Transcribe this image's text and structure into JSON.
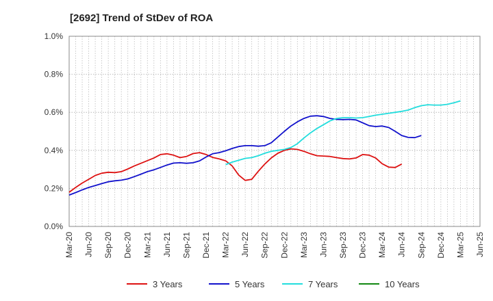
{
  "chart_data": {
    "type": "line",
    "title": "[2692]  Trend of StDev of ROA",
    "xlabel": "",
    "ylabel": "",
    "ylim": [
      0,
      1.0
    ],
    "y_ticks": [
      "0.0%",
      "0.2%",
      "0.4%",
      "0.6%",
      "0.8%",
      "1.0%"
    ],
    "x_ticks": [
      "Mar-20",
      "Jun-20",
      "Sep-20",
      "Dec-20",
      "Mar-21",
      "Jun-21",
      "Sep-21",
      "Dec-21",
      "Mar-22",
      "Jun-22",
      "Sep-22",
      "Dec-22",
      "Mar-23",
      "Jun-23",
      "Sep-23",
      "Dec-23",
      "Mar-24",
      "Jun-24",
      "Sep-24",
      "Dec-24",
      "Mar-25",
      "Jun-25"
    ],
    "grid": true,
    "legend_position": "bottom",
    "series": [
      {
        "name": "3 Years",
        "color": "#dd1111",
        "start_index": 0,
        "values": [
          0.18,
          0.205,
          0.228,
          0.248,
          0.268,
          0.28,
          0.285,
          0.283,
          0.288,
          0.302,
          0.318,
          0.332,
          0.346,
          0.36,
          0.378,
          0.382,
          0.375,
          0.362,
          0.368,
          0.383,
          0.388,
          0.378,
          0.363,
          0.355,
          0.345,
          0.318,
          0.27,
          0.242,
          0.248,
          0.29,
          0.328,
          0.36,
          0.385,
          0.4,
          0.408,
          0.405,
          0.395,
          0.382,
          0.372,
          0.37,
          0.368,
          0.362,
          0.357,
          0.355,
          0.36,
          0.378,
          0.375,
          0.36,
          0.33,
          0.312,
          0.31,
          0.328
        ]
      },
      {
        "name": "5 Years",
        "color": "#1111cc",
        "start_index": 0,
        "values": [
          0.165,
          0.178,
          0.192,
          0.205,
          0.215,
          0.225,
          0.235,
          0.24,
          0.243,
          0.25,
          0.262,
          0.275,
          0.288,
          0.298,
          0.31,
          0.323,
          0.333,
          0.335,
          0.332,
          0.335,
          0.345,
          0.365,
          0.382,
          0.388,
          0.398,
          0.41,
          0.42,
          0.425,
          0.425,
          0.422,
          0.425,
          0.44,
          0.47,
          0.5,
          0.528,
          0.55,
          0.568,
          0.58,
          0.582,
          0.578,
          0.568,
          0.563,
          0.562,
          0.563,
          0.56,
          0.545,
          0.53,
          0.525,
          0.528,
          0.52,
          0.5,
          0.478,
          0.468,
          0.467,
          0.478
        ]
      },
      {
        "name": "7 Years",
        "color": "#22dddd",
        "start_index": 24,
        "values": [
          0.325,
          0.338,
          0.348,
          0.358,
          0.362,
          0.372,
          0.385,
          0.395,
          0.4,
          0.405,
          0.415,
          0.435,
          0.465,
          0.492,
          0.515,
          0.535,
          0.555,
          0.568,
          0.572,
          0.572,
          0.57,
          0.572,
          0.578,
          0.585,
          0.59,
          0.595,
          0.6,
          0.605,
          0.612,
          0.625,
          0.635,
          0.64,
          0.638,
          0.638,
          0.642,
          0.65,
          0.66
        ]
      },
      {
        "name": "10 Years",
        "color": "#118811",
        "start_index": 0,
        "values": []
      }
    ]
  }
}
